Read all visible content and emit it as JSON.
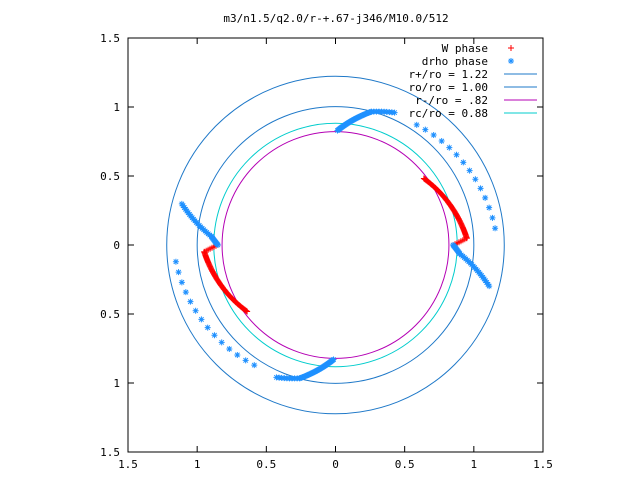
{
  "chart_data": {
    "type": "scatter",
    "title": "m3/n1.5/q2.0/r-+.67-j346/M10.0/512",
    "xlabel": "",
    "ylabel": "",
    "xlim": [
      -1.5,
      1.5
    ],
    "ylim": [
      -1.5,
      1.5
    ],
    "x_tick_labels": [
      "1.5",
      "1",
      "0.5",
      "0",
      "0.5",
      "1",
      "1.5"
    ],
    "y_tick_labels": [
      "1.5",
      "1",
      "0.5",
      "0",
      "0.5",
      "1",
      "1.5"
    ],
    "grid": false,
    "legend_position": "top-right",
    "series": [
      {
        "name": "W phase",
        "marker": "plus",
        "color": "#ff0000",
        "arms": [
          {
            "r_start": 0.85,
            "r_end": 0.95,
            "theta_start": 180,
            "theta_end": 183,
            "n": 8
          },
          {
            "r_start": 0.95,
            "r_end": 0.8,
            "theta_start": 183,
            "theta_end": 217,
            "n": 75
          },
          {
            "r_start": 0.85,
            "r_end": 0.95,
            "theta_start": 0,
            "theta_end": 3,
            "n": 8
          },
          {
            "r_start": 0.95,
            "r_end": 0.8,
            "theta_start": 3,
            "theta_end": 37,
            "n": 75
          }
        ]
      },
      {
        "name": "drho phase",
        "marker": "asterisk",
        "color": "#1e90ff",
        "arms": [
          {
            "r_start": 1.15,
            "r_end": 0.9,
            "theta_start": 165,
            "theta_end": 176,
            "n": 22
          },
          {
            "r_start": 0.9,
            "r_end": 0.85,
            "theta_start": 176,
            "theta_end": 180,
            "n": 10
          },
          {
            "r_start": 1.15,
            "r_end": 0.9,
            "theta_start": 345,
            "theta_end": 356,
            "n": 22
          },
          {
            "r_start": 0.9,
            "r_end": 0.85,
            "theta_start": 356,
            "theta_end": 360,
            "n": 10
          },
          {
            "r_start": 0.83,
            "r_end": 1.0,
            "theta_start": 89,
            "theta_end": 75,
            "n": 35
          },
          {
            "r_start": 0.83,
            "r_end": 1.0,
            "theta_start": 269,
            "theta_end": 255,
            "n": 35
          },
          {
            "r_start": 1.0,
            "r_end": 1.05,
            "theta_start": 75,
            "theta_end": 66,
            "n": 10
          },
          {
            "r_start": 1.0,
            "r_end": 1.05,
            "theta_start": 255,
            "theta_end": 246,
            "n": 10
          },
          {
            "r_start": 1.05,
            "r_end": 1.16,
            "theta_start": 56,
            "theta_end": 6,
            "n": 14
          },
          {
            "r_start": 1.05,
            "r_end": 1.16,
            "theta_start": 236,
            "theta_end": 186,
            "n": 14
          }
        ]
      },
      {
        "name": "r+/ro = 1.22",
        "type": "circle",
        "r": 1.22,
        "color": "#1e78c8"
      },
      {
        "name": "ro/ro = 1.00",
        "type": "circle",
        "r": 1.0,
        "color": "#1e78c8"
      },
      {
        "name": "r-/ro =  .82",
        "type": "circle",
        "r": 0.82,
        "color": "#b400b4"
      },
      {
        "name": "rc/ro = 0.88",
        "type": "circle",
        "r": 0.88,
        "color": "#00cccc"
      }
    ]
  }
}
